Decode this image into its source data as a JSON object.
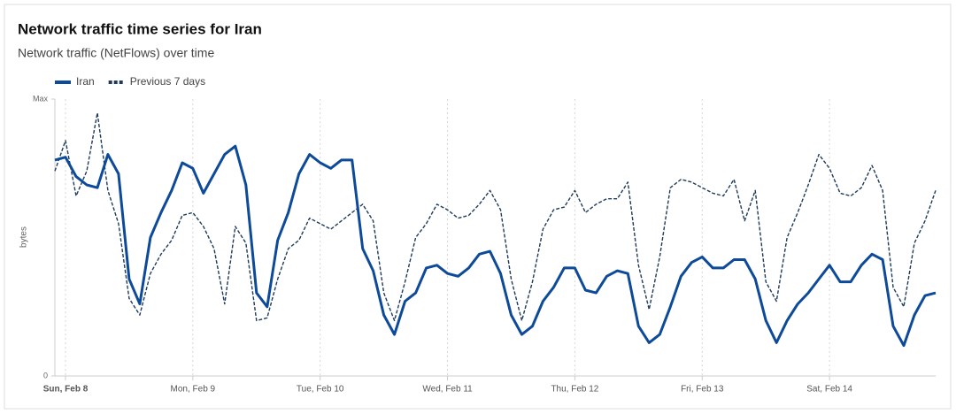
{
  "chart_data": {
    "type": "line",
    "title": "Network traffic time series for Iran",
    "subtitle": "Network traffic (NetFlows) over time",
    "y_label": "bytes",
    "x": [
      -2,
      0,
      2,
      4,
      6,
      8,
      10,
      12,
      14,
      16,
      18,
      20,
      22,
      24,
      26,
      28,
      30,
      32,
      34,
      36,
      38,
      40,
      42,
      44,
      46,
      48,
      50,
      52,
      54,
      56,
      58,
      60,
      62,
      64,
      66,
      68,
      70,
      72,
      74,
      76,
      78,
      80,
      82,
      84,
      86,
      88,
      90,
      92,
      94,
      96,
      98,
      100,
      102,
      104,
      106,
      108,
      110,
      112,
      114,
      116,
      118,
      120,
      122,
      124,
      126,
      128,
      130,
      132,
      134,
      136,
      138,
      140,
      142,
      144,
      146,
      148,
      150,
      152,
      154,
      156,
      158,
      160,
      162,
      164
    ],
    "series": [
      {
        "name": "Iran",
        "color": "#0e4a9a",
        "style": "solid",
        "values": [
          78,
          79,
          72,
          69,
          68,
          80,
          73,
          35,
          26,
          50,
          59,
          67,
          77,
          75,
          66,
          73,
          80,
          83,
          69,
          30,
          25,
          49,
          59,
          73,
          80,
          77,
          75,
          78,
          78,
          46,
          38,
          22,
          15,
          27,
          30,
          39,
          40,
          37,
          36,
          39,
          44,
          45,
          37,
          22,
          15,
          18,
          27,
          32,
          39,
          39,
          31,
          30,
          36,
          38,
          37,
          18,
          12,
          15,
          25,
          36,
          41,
          43,
          39,
          39,
          42,
          42,
          35,
          20,
          12,
          20,
          26,
          30,
          35,
          40,
          34,
          34,
          40,
          44,
          42,
          18,
          11,
          22,
          29,
          30
        ]
      },
      {
        "name": "Previous 7 days",
        "color": "#1e3a5c",
        "style": "dashed",
        "values": [
          74,
          85,
          65,
          74,
          95,
          67,
          55,
          28,
          22,
          37,
          44,
          49,
          58,
          59,
          54,
          46,
          26,
          54,
          48,
          20,
          21,
          35,
          46,
          49,
          57,
          55,
          53,
          56,
          59,
          62,
          56,
          30,
          20,
          34,
          50,
          55,
          62,
          60,
          57,
          58,
          62,
          67,
          60,
          35,
          20,
          34,
          53,
          60,
          61,
          67,
          59,
          62,
          64,
          64,
          70,
          40,
          24,
          43,
          68,
          71,
          70,
          68,
          66,
          65,
          71,
          56,
          67,
          34,
          27,
          50,
          59,
          69,
          80,
          75,
          66,
          65,
          68,
          76,
          67,
          32,
          25,
          48,
          56,
          67
        ]
      }
    ],
    "xlim": [
      -2,
      164
    ],
    "xticks": [
      {
        "value": 0,
        "label": "Sun, Feb 8"
      },
      {
        "value": 24,
        "label": "Mon, Feb 9"
      },
      {
        "value": 48,
        "label": "Tue, Feb 10"
      },
      {
        "value": 72,
        "label": "Wed, Feb 11"
      },
      {
        "value": 96,
        "label": "Thu, Feb 12"
      },
      {
        "value": 120,
        "label": "Fri, Feb 13"
      },
      {
        "value": 144,
        "label": "Sat, Feb 14"
      }
    ],
    "ylim": [
      0,
      100
    ],
    "yticks": [
      0,
      {
        "value": 100,
        "label": "Max"
      }
    ],
    "grid": true,
    "legend": "top-left"
  }
}
